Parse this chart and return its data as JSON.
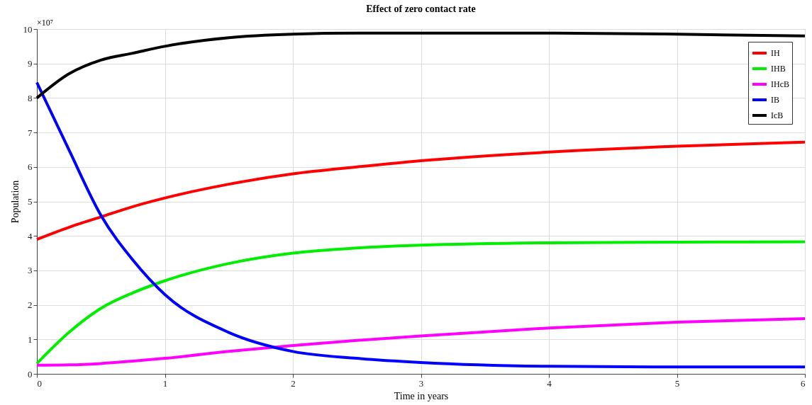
{
  "chart_data": {
    "type": "line",
    "title": "Effect of zero contact rate",
    "xlabel": "Time in years",
    "ylabel": "Population",
    "annotations": [
      "×10⁷"
    ],
    "x": [
      0,
      0.25,
      0.5,
      0.75,
      1,
      1.5,
      2,
      2.5,
      3,
      4,
      5,
      6
    ],
    "series": [
      {
        "name": "IH",
        "color": "#ff0000",
        "values": [
          3.9,
          4.25,
          4.55,
          4.85,
          5.1,
          5.5,
          5.8,
          6.0,
          6.18,
          6.43,
          6.6,
          6.72
        ]
      },
      {
        "name": "IHB",
        "color": "#00ee00",
        "values": [
          0.3,
          1.2,
          1.9,
          2.35,
          2.7,
          3.2,
          3.5,
          3.65,
          3.73,
          3.8,
          3.82,
          3.83
        ]
      },
      {
        "name": "IHcB",
        "color": "#ff00ff",
        "values": [
          0.25,
          0.26,
          0.3,
          0.37,
          0.45,
          0.65,
          0.82,
          0.97,
          1.1,
          1.33,
          1.5,
          1.6
        ]
      },
      {
        "name": "IB",
        "color": "#0000ff",
        "values": [
          8.45,
          6.5,
          4.6,
          3.3,
          2.3,
          1.2,
          0.65,
          0.45,
          0.33,
          0.22,
          0.2,
          0.2
        ]
      },
      {
        "name": "IcB",
        "color": "#000000",
        "values": [
          8.0,
          8.7,
          9.1,
          9.3,
          9.5,
          9.75,
          9.85,
          9.88,
          9.88,
          9.88,
          9.85,
          9.8
        ]
      }
    ],
    "xlim": [
      0,
      6
    ],
    "xticks": [
      0,
      1,
      2,
      3,
      4,
      5,
      6
    ],
    "ylim": [
      0,
      10
    ],
    "yticks": [
      0,
      1,
      2,
      3,
      4,
      5,
      6,
      7,
      8,
      9,
      10
    ],
    "grid": true,
    "legend": "top right"
  }
}
